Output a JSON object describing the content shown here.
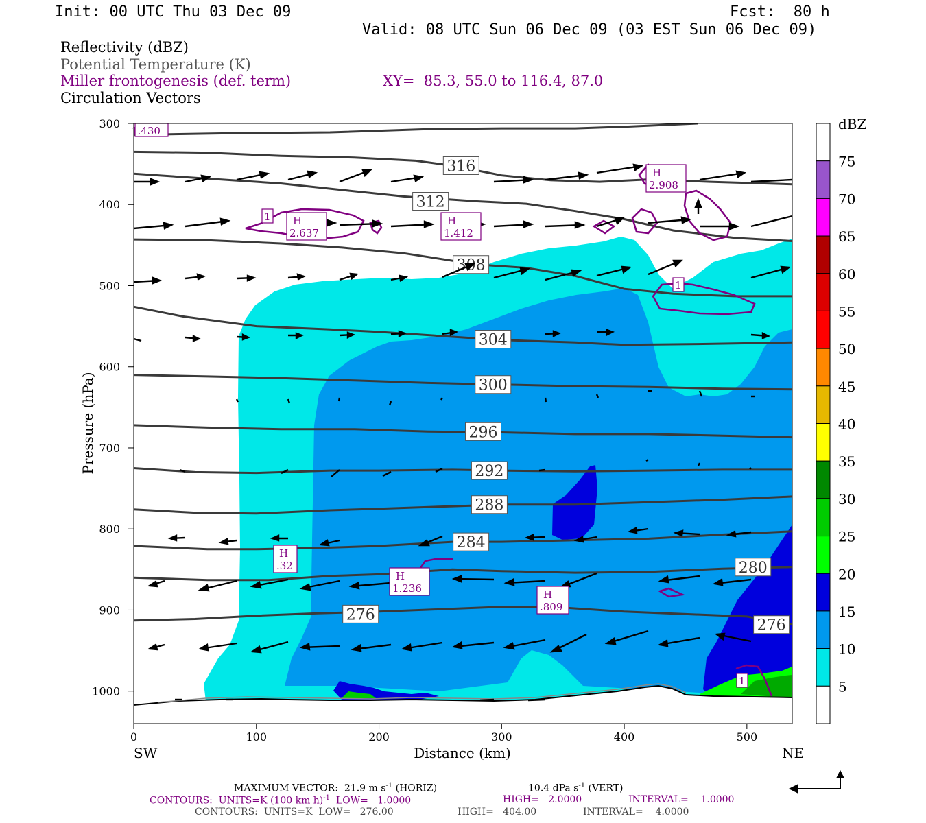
{
  "header": {
    "init": "Init: 00 UTC Thu 03 Dec 09",
    "fcst": "Fcst:  80 h",
    "valid": "Valid: 08 UTC Sun 06 Dec 09 (03 EST Sun 06 Dec 09)"
  },
  "legend": {
    "line1": "Reflectivity (dBZ)",
    "line2": "Potential Temperature (K)",
    "line3": "Miller frontogenesis (def. term)",
    "xy": "XY=  85.3, 55.0 to 116.4, 87.0",
    "line4": "Circulation Vectors"
  },
  "colors": {
    "purple": "#800080",
    "gray_text": "#555555",
    "theta_line": "#3a3a3a"
  },
  "chart_data": {
    "type": "cross-section",
    "xlabel": "Distance (km)",
    "ylabel": "Pressure (hPa)",
    "xlim": [
      0,
      537
    ],
    "ylim_hpa": [
      1040,
      300
    ],
    "x_ticks": [
      0,
      100,
      200,
      300,
      400,
      500
    ],
    "x_tick_labels": [
      "0",
      "100",
      "200",
      "300",
      "400",
      "500"
    ],
    "y_ticks": [
      300,
      400,
      500,
      600,
      700,
      800,
      900,
      1000
    ],
    "y_tick_labels": [
      "300",
      "400",
      "500",
      "600",
      "700",
      "800",
      "900",
      "1000"
    ],
    "left_end_label": "SW",
    "right_end_label": "NE",
    "colorbar": {
      "title": "dBZ",
      "levels": [
        "5",
        "10",
        "15",
        "20",
        "25",
        "30",
        "35",
        "40",
        "45",
        "50",
        "55",
        "60",
        "65",
        "70",
        "75"
      ],
      "colors": [
        "#ffffff",
        "#00e8e8",
        "#0099ee",
        "#0000dd",
        "#00ff00",
        "#00cc00",
        "#008800",
        "#ffff00",
        "#e6b800",
        "#ff8800",
        "#ff0000",
        "#dd0000",
        "#b00000",
        "#ff00ff",
        "#9955cc",
        "#ffffff"
      ]
    },
    "theta_contours": [
      {
        "value": 276,
        "label": "276",
        "points": [
          [
            0,
            913
          ],
          [
            50,
            911
          ],
          [
            100,
            907
          ],
          [
            150,
            904
          ],
          [
            200,
            902
          ],
          [
            250,
            899
          ],
          [
            300,
            896
          ],
          [
            350,
            897
          ],
          [
            400,
            902
          ],
          [
            450,
            905
          ],
          [
            500,
            908
          ],
          [
            537,
            918
          ]
        ]
      },
      {
        "value": 280,
        "label": "280",
        "points": [
          [
            0,
            860
          ],
          [
            60,
            863
          ],
          [
            110,
            863
          ],
          [
            160,
            858
          ],
          [
            200,
            856
          ],
          [
            260,
            850
          ],
          [
            300,
            852
          ],
          [
            360,
            854
          ],
          [
            420,
            853
          ],
          [
            480,
            849
          ],
          [
            537,
            847
          ]
        ]
      },
      {
        "value": 284,
        "label": "284",
        "points": [
          [
            0,
            821
          ],
          [
            60,
            825
          ],
          [
            100,
            825
          ],
          [
            160,
            823
          ],
          [
            200,
            821
          ],
          [
            260,
            816
          ],
          [
            300,
            816
          ],
          [
            360,
            814
          ],
          [
            420,
            812
          ],
          [
            480,
            807
          ],
          [
            537,
            803
          ]
        ]
      },
      {
        "value": 288,
        "label": "288",
        "points": [
          [
            0,
            776
          ],
          [
            50,
            780
          ],
          [
            100,
            781
          ],
          [
            160,
            777
          ],
          [
            200,
            775
          ],
          [
            260,
            772
          ],
          [
            300,
            770
          ],
          [
            360,
            770
          ],
          [
            420,
            767
          ],
          [
            480,
            764
          ],
          [
            537,
            760
          ]
        ]
      },
      {
        "value": 292,
        "label": "292",
        "points": [
          [
            0,
            725
          ],
          [
            50,
            730
          ],
          [
            100,
            731
          ],
          [
            160,
            728
          ],
          [
            200,
            728
          ],
          [
            260,
            727
          ],
          [
            300,
            728
          ],
          [
            360,
            729
          ],
          [
            420,
            728
          ],
          [
            480,
            727
          ],
          [
            537,
            727
          ]
        ]
      },
      {
        "value": 296,
        "label": "296",
        "points": [
          [
            0,
            672
          ],
          [
            60,
            675
          ],
          [
            120,
            677
          ],
          [
            180,
            677
          ],
          [
            240,
            680
          ],
          [
            300,
            681
          ],
          [
            360,
            683
          ],
          [
            420,
            683
          ],
          [
            480,
            685
          ],
          [
            537,
            687
          ]
        ]
      },
      {
        "value": 300,
        "label": "300",
        "points": [
          [
            0,
            610
          ],
          [
            60,
            612
          ],
          [
            120,
            614
          ],
          [
            180,
            617
          ],
          [
            240,
            620
          ],
          [
            300,
            622
          ],
          [
            360,
            624
          ],
          [
            420,
            625
          ],
          [
            480,
            627
          ],
          [
            537,
            628
          ]
        ]
      },
      {
        "value": 304,
        "label": "304",
        "points": [
          [
            0,
            526
          ],
          [
            40,
            538
          ],
          [
            100,
            550
          ],
          [
            160,
            554
          ],
          [
            200,
            557
          ],
          [
            260,
            563
          ],
          [
            300,
            567
          ],
          [
            360,
            570
          ],
          [
            400,
            573
          ],
          [
            460,
            572
          ],
          [
            537,
            570
          ]
        ]
      },
      {
        "value": 308,
        "label": "308",
        "points": [
          [
            0,
            443
          ],
          [
            60,
            444
          ],
          [
            120,
            448
          ],
          [
            170,
            453
          ],
          [
            220,
            460
          ],
          [
            280,
            474
          ],
          [
            320,
            478
          ],
          [
            360,
            488
          ],
          [
            400,
            504
          ],
          [
            440,
            510
          ],
          [
            490,
            513
          ],
          [
            537,
            513
          ]
        ]
      },
      {
        "value": 312,
        "label": "312",
        "points": [
          [
            0,
            362
          ],
          [
            60,
            368
          ],
          [
            120,
            374
          ],
          [
            170,
            382
          ],
          [
            220,
            390
          ],
          [
            280,
            396
          ],
          [
            320,
            399
          ],
          [
            360,
            408
          ],
          [
            400,
            418
          ],
          [
            440,
            432
          ],
          [
            490,
            441
          ],
          [
            537,
            445
          ]
        ]
      },
      {
        "value": 316,
        "label": "316",
        "points": [
          [
            0,
            335
          ],
          [
            60,
            336
          ],
          [
            120,
            340
          ],
          [
            180,
            342
          ],
          [
            230,
            346
          ],
          [
            260,
            352
          ],
          [
            300,
            364
          ],
          [
            340,
            370
          ],
          [
            380,
            372
          ],
          [
            420,
            369
          ],
          [
            470,
            372
          ],
          [
            537,
            375
          ]
        ]
      },
      {
        "value": 320,
        "label": "",
        "points": [
          [
            0,
            314
          ],
          [
            80,
            312
          ],
          [
            160,
            311
          ],
          [
            240,
            307
          ],
          [
            300,
            306
          ],
          [
            360,
            306
          ],
          [
            400,
            304
          ],
          [
            430,
            302
          ],
          [
            460,
            300
          ]
        ]
      }
    ],
    "frontogenesis_labels": [
      {
        "x": 130,
        "p": 422,
        "value": "2.637"
      },
      {
        "x": 262,
        "p": 422,
        "value": "1.412"
      },
      {
        "x": 432,
        "p": 356,
        "value": "2.908"
      },
      {
        "x": 125,
        "p": 841,
        "value": ".32"
      },
      {
        "x": 226,
        "p": 874,
        "value": "1.236"
      },
      {
        "x": 342,
        "p": 887,
        "value": ".809"
      },
      {
        "x": 0,
        "p": 308,
        "value": "1.430"
      }
    ],
    "frontogenesis_contour_labels": [
      {
        "x": 108,
        "p": 413,
        "value": "1"
      },
      {
        "x": 442,
        "p": 497,
        "value": "1"
      },
      {
        "x": 496,
        "p": 989,
        "value": "1"
      }
    ]
  },
  "footer": {
    "max_vector_1": "MAXIMUM VECTOR:  21.9 m s",
    "max_vector_1_sup": "-1",
    "max_vector_2": " (HORIZ)",
    "max_vector_3": "10.4 dPa s",
    "max_vector_3_sup": "-1",
    "max_vector_4": " (VERT)",
    "contours1_a": "CONTOURS:  UNITS=K (100 km h)",
    "contours1_sup": "-1",
    "contours1_b": "  LOW=   1.0000",
    "contours1_c": "HIGH=   2.0000",
    "contours1_d": "INTERVAL=    1.0000",
    "contours2_a": "CONTOURS:  UNITS=K  LOW=   276.00",
    "contours2_c": "HIGH=   404.00",
    "contours2_d": "INTERVAL=    4.0000"
  }
}
